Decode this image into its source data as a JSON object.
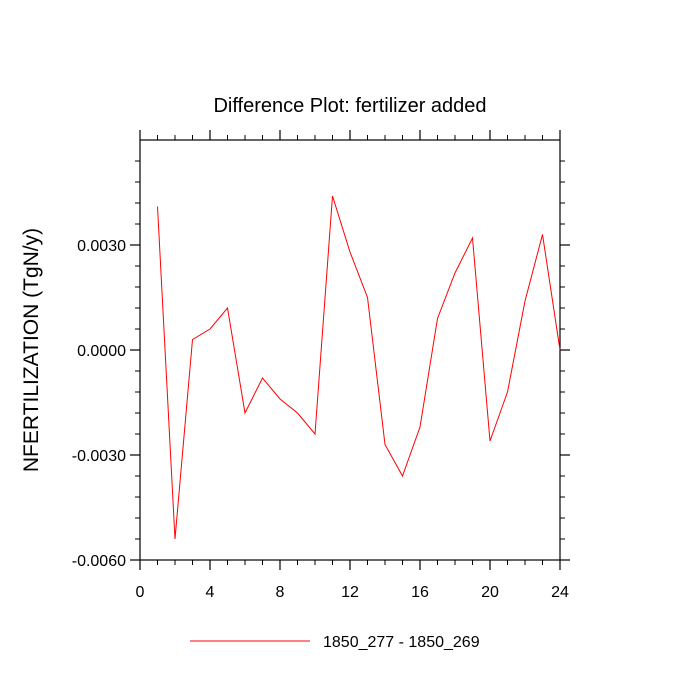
{
  "chart_data": {
    "type": "line",
    "title": "Difference Plot: fertilizer added",
    "xlabel": "",
    "ylabel": "NFERTILIZATION  (TgN/y)",
    "xlim": [
      0,
      24
    ],
    "ylim": [
      -0.006,
      0.006
    ],
    "x_ticks": [
      0,
      4,
      8,
      12,
      16,
      20,
      24
    ],
    "x_tick_labels": [
      "0",
      "4",
      "8",
      "12",
      "16",
      "20",
      "24"
    ],
    "y_ticks": [
      -0.006,
      -0.003,
      0.0,
      0.003
    ],
    "y_tick_labels": [
      "-0.0060",
      "-0.0030",
      "0.0000",
      "0.0030"
    ],
    "grid": false,
    "legend_position": "bottom",
    "series": [
      {
        "name": "1850_277 - 1850_269",
        "color": "#ff0000",
        "x": [
          1,
          2,
          3,
          4,
          5,
          6,
          7,
          8,
          9,
          10,
          11,
          12,
          13,
          14,
          15,
          16,
          17,
          18,
          19,
          20,
          21,
          22,
          23,
          24
        ],
        "values": [
          0.0041,
          -0.0054,
          0.0003,
          0.0006,
          0.0012,
          -0.0018,
          -0.0008,
          -0.0014,
          -0.0018,
          -0.0024,
          0.0044,
          0.0028,
          0.0015,
          -0.0027,
          -0.0036,
          -0.0022,
          0.0009,
          0.0022,
          0.0032,
          -0.0026,
          -0.0012,
          0.0014,
          0.0033,
          0.0
        ]
      }
    ]
  }
}
